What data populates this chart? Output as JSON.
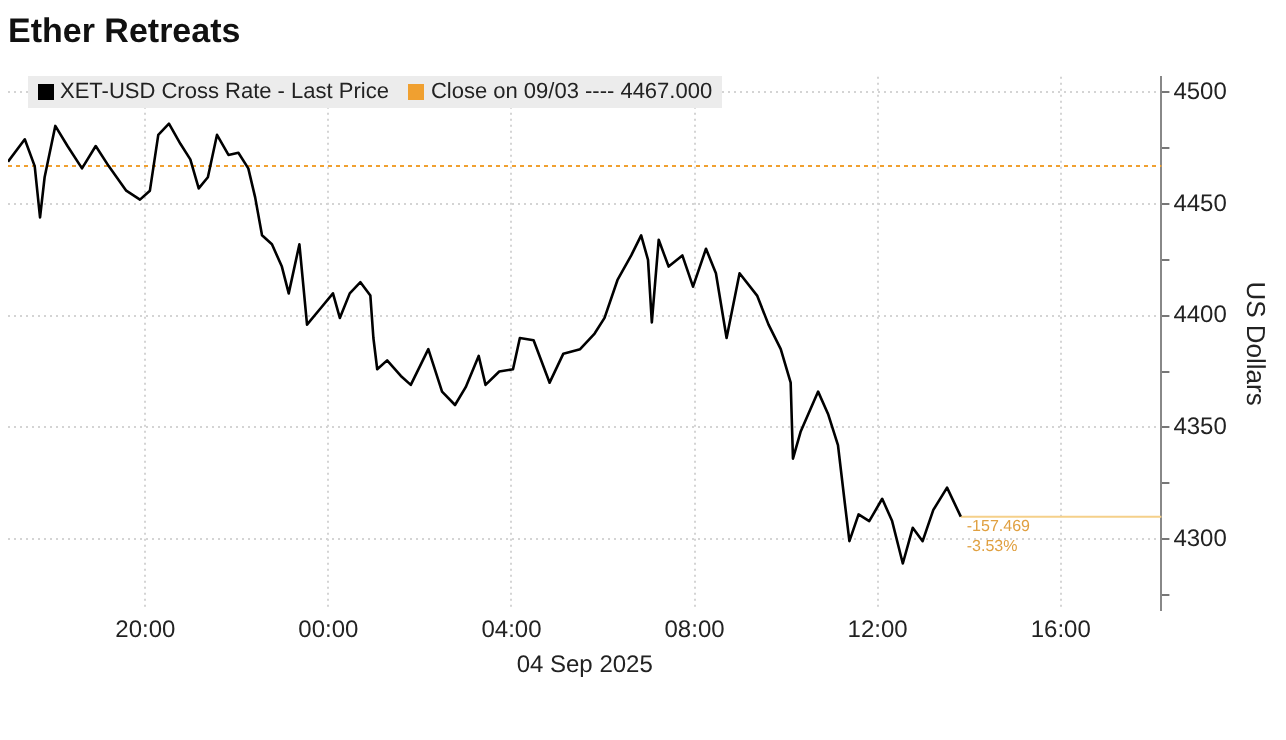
{
  "chart_data": {
    "type": "line",
    "title": "Ether Retreats",
    "xlabel": "04 Sep 2025",
    "ylabel": "US Dollars",
    "xlim": [
      "2025-09-03T17:00",
      "2025-09-04T18:12"
    ],
    "xticks": [
      {
        "value": "2025-09-03T20:00",
        "label": "20:00"
      },
      {
        "value": "2025-09-04T00:00",
        "label": "00:00"
      },
      {
        "value": "2025-09-04T04:00",
        "label": "04:00"
      },
      {
        "value": "2025-09-04T08:00",
        "label": "08:00"
      },
      {
        "value": "2025-09-04T12:00",
        "label": "12:00"
      },
      {
        "value": "2025-09-04T16:00",
        "label": "16:00"
      }
    ],
    "ylim": [
      4268,
      4507
    ],
    "yticks": [
      {
        "value": 4275,
        "label": null
      },
      4300,
      {
        "value": 4325,
        "label": null
      },
      4350,
      {
        "value": 4375,
        "label": null
      },
      4400,
      {
        "value": 4425,
        "label": null
      },
      4450,
      {
        "value": 4475,
        "label": null
      },
      4500
    ],
    "grid": true,
    "legend": "top left",
    "marker": "none",
    "line_style": "solid",
    "series": [
      {
        "name": "XET-USD Cross Rate - Last Price",
        "color": "#000000",
        "x": [
          "2025-09-03T17:00",
          "2025-09-03T17:22",
          "2025-09-03T17:35",
          "2025-09-03T17:42",
          "2025-09-03T17:48",
          "2025-09-03T18:02",
          "2025-09-03T18:18",
          "2025-09-03T18:37",
          "2025-09-03T18:55",
          "2025-09-03T19:12",
          "2025-09-03T19:35",
          "2025-09-03T19:53",
          "2025-09-03T20:06",
          "2025-09-03T20:17",
          "2025-09-03T20:31",
          "2025-09-03T20:46",
          "2025-09-03T20:59",
          "2025-09-03T21:10",
          "2025-09-03T21:22",
          "2025-09-03T21:34",
          "2025-09-03T21:49",
          "2025-09-03T22:02",
          "2025-09-03T22:15",
          "2025-09-03T22:24",
          "2025-09-03T22:33",
          "2025-09-03T22:46",
          "2025-09-03T22:59",
          "2025-09-03T23:08",
          "2025-09-03T23:22",
          "2025-09-03T23:32",
          "2025-09-03T23:49",
          "2025-09-04T00:06",
          "2025-09-04T00:15",
          "2025-09-04T00:28",
          "2025-09-04T00:42",
          "2025-09-04T00:55",
          "2025-09-04T00:59",
          "2025-09-04T01:04",
          "2025-09-04T01:17",
          "2025-09-04T01:35",
          "2025-09-04T01:48",
          "2025-09-04T02:11",
          "2025-09-04T02:29",
          "2025-09-04T02:46",
          "2025-09-04T03:00",
          "2025-09-04T03:17",
          "2025-09-04T03:26",
          "2025-09-04T03:44",
          "2025-09-04T04:02",
          "2025-09-04T04:11",
          "2025-09-04T04:29",
          "2025-09-04T04:50",
          "2025-09-04T05:08",
          "2025-09-04T05:30",
          "2025-09-04T05:49",
          "2025-09-04T06:02",
          "2025-09-04T06:19",
          "2025-09-04T06:37",
          "2025-09-04T06:50",
          "2025-09-04T06:59",
          "2025-09-04T07:04",
          "2025-09-04T07:13",
          "2025-09-04T07:26",
          "2025-09-04T07:44",
          "2025-09-04T07:58",
          "2025-09-04T08:15",
          "2025-09-04T08:28",
          "2025-09-04T08:42",
          "2025-09-04T08:59",
          "2025-09-04T09:22",
          "2025-09-04T09:37",
          "2025-09-04T09:53",
          "2025-09-04T10:06",
          "2025-09-04T10:09",
          "2025-09-04T10:19",
          "2025-09-04T10:42",
          "2025-09-04T10:55",
          "2025-09-04T11:08",
          "2025-09-04T11:17",
          "2025-09-04T11:23",
          "2025-09-04T11:35",
          "2025-09-04T11:49",
          "2025-09-04T12:06",
          "2025-09-04T12:19",
          "2025-09-04T12:33",
          "2025-09-04T12:46",
          "2025-09-04T12:59",
          "2025-09-04T13:13",
          "2025-09-04T13:31",
          "2025-09-04T13:49"
        ],
        "values": [
          4469,
          4479,
          4467,
          4444,
          4462,
          4485,
          4476,
          4466,
          4476,
          4467,
          4456,
          4452,
          4456,
          4481,
          4486,
          4477,
          4470,
          4457,
          4462,
          4481,
          4472,
          4473,
          4466,
          4453,
          4436,
          4432,
          4422,
          4410,
          4432,
          4396,
          4403,
          4410,
          4399,
          4410,
          4415,
          4409,
          4390,
          4376,
          4380,
          4373,
          4369,
          4385,
          4366,
          4360,
          4368,
          4382,
          4369,
          4375,
          4376,
          4390,
          4389,
          4370,
          4383,
          4385,
          4392,
          4399,
          4416,
          4427,
          4436,
          4425,
          4397,
          4434,
          4422,
          4427,
          4413,
          4430,
          4419,
          4390,
          4419,
          4409,
          4396,
          4385,
          4370,
          4336,
          4348,
          4366,
          4356,
          4342,
          4316,
          4299,
          4311,
          4308,
          4318,
          4308,
          4289,
          4305,
          4299,
          4313,
          4323,
          4310
        ]
      }
    ],
    "ref_lines": [
      {
        "axis": "y",
        "value": 4467,
        "label": "Close on 09/03 ---- 4467.000",
        "color": "#f0a030",
        "line_style": "dotted"
      },
      {
        "axis": "y",
        "value": 4310,
        "color": "#f5d08a",
        "line_style": "solid"
      }
    ],
    "annotations": [
      {
        "text": "-157.469",
        "x": "2025-09-04T13:49",
        "y": 4310
      },
      {
        "text": "-3.53%",
        "x": "2025-09-04T13:49",
        "y": 4310
      }
    ]
  }
}
